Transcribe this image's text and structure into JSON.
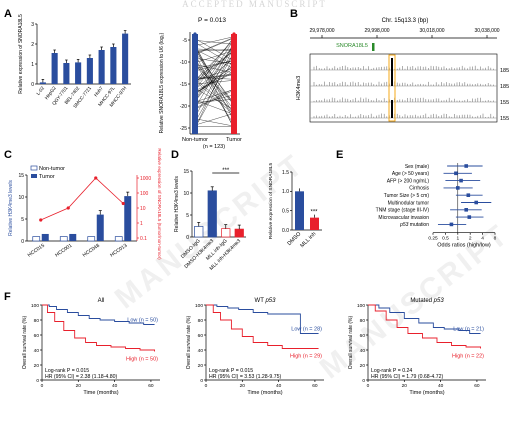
{
  "header_text": "ACCEPTED MANUSCRIPT",
  "watermark": "MANUSCRIPT",
  "colors": {
    "blue": "#2a4d9e",
    "red": "#e8202c",
    "pink": "#f6b0ba",
    "gray": "#9a9a9a"
  },
  "panels": {
    "A": "A",
    "B": "B",
    "C": "C",
    "D": "D",
    "E": "E",
    "F": "F"
  },
  "panelA": {
    "ylabel": "Relative expression of SNORA18L5",
    "categories": [
      "L-02",
      "HepG2",
      "QGY-7701",
      "BEL-7402",
      "SMCC-7721",
      "Huh7",
      "MHCC-97L",
      "MHCC-97H"
    ],
    "values": [
      0.08,
      1.55,
      1.05,
      1.08,
      1.3,
      1.7,
      1.85,
      2.52
    ],
    "ylim": [
      0,
      3
    ],
    "yticks": [
      "0",
      "1",
      "2",
      "3"
    ]
  },
  "panelA2": {
    "pvalue": "P = 0.013",
    "ylabel": "Relative SNORA18L5 expression to U6 (log₂)",
    "groups": [
      "Non-tumor",
      "Tumor"
    ],
    "n": "(n = 123)",
    "yticks": [
      "-5",
      "-10",
      "-15",
      "-20",
      "-25"
    ]
  },
  "panelB": {
    "title": "Chr. 15q13.3 (bp)",
    "axis": [
      "29,978,000",
      "29,998,000",
      "30,018,000",
      "30,038,000"
    ],
    "gene": "SNORA18L5",
    "ylabel": "H3K4me3",
    "tracks": [
      "185-N",
      "185-T",
      "155-N",
      "155-T"
    ]
  },
  "panelC": {
    "ylabel": "Relative H3K4me3 levels",
    "ylabel2": "Relative expression of SNORA18L5 (tumor/non-tumor)",
    "legend": [
      "Non-tumor",
      "Tumor"
    ],
    "categories": [
      "HCC015",
      "HCC001",
      "HCC048",
      "HCC013"
    ],
    "nontumor": [
      1.0,
      1.0,
      1.0,
      1.0
    ],
    "tumor": [
      1.6,
      1.6,
      6.0,
      10.2
    ],
    "ratio_log": [
      0.2,
      1.0,
      3.0,
      1.3
    ],
    "ylim": [
      0,
      15
    ],
    "yticks": [
      "0",
      "5",
      "10",
      "15"
    ],
    "yticks2": [
      "1000",
      "100",
      "10",
      "1",
      "0.1"
    ]
  },
  "panelD": {
    "ylabel": "Relative H3K4me3 levels",
    "categories": [
      "DMSO-IgG",
      "DMSO-H3K4me3",
      "MLL inh-IgG",
      "MLL inh-H3K4me3"
    ],
    "values": [
      2.4,
      10.5,
      1.9,
      1.8
    ],
    "ylim": [
      0,
      15
    ],
    "yticks": [
      "0",
      "5",
      "10",
      "15"
    ],
    "sig": "***",
    "ylabel2": "Relative expression of SNORA18L5",
    "categories2": [
      "DMSO",
      "MLL inh"
    ],
    "values2": [
      1.0,
      0.32
    ],
    "ylim2": [
      0,
      1.5
    ],
    "yticks2": [
      "0.0",
      "0.5",
      "1.0",
      "1.5"
    ],
    "sig2": "***"
  },
  "panelE": {
    "rows": [
      "Sex (male)",
      "Age (> 50 years)",
      "AFP (> 200 ng/mL)",
      "Cirrhosis",
      "Tumor Size (> 5 cm)",
      "Multinodular tumor",
      "TNM stage (stage III-IV)",
      "Microvascular invasion",
      "p53 mutation"
    ],
    "or": [
      1.6,
      0.9,
      1.2,
      1.0,
      1.8,
      2.8,
      1.6,
      1.9,
      0.7
    ],
    "lo": [
      0.55,
      0.45,
      0.5,
      0.45,
      0.9,
      1.2,
      0.65,
      0.9,
      0.33
    ],
    "hi": [
      4.0,
      2.2,
      3.5,
      2.3,
      4.0,
      6.5,
      3.8,
      4.2,
      1.6
    ],
    "xticks": [
      "0.25",
      "0.5",
      "1",
      "2",
      "4",
      "8"
    ],
    "xlabel": "Odds ratios (high/low)"
  },
  "panelF": [
    {
      "title": "All",
      "title_italic": "",
      "low": "Low (n = 50)",
      "high": "High (n = 50)",
      "logrank": "Log-rank P = 0.015",
      "hr": "HR (95% CI) = 2.38 (1.18-4.80)"
    },
    {
      "title": "WT ",
      "title_italic": "p53",
      "low": "Low (n = 28)",
      "high": "High (n = 29)",
      "logrank": "Log-rank P = 0.015",
      "hr": "HR (95% CI) = 3.53 (1.28-9.75)"
    },
    {
      "title": "Mutated ",
      "title_italic": "p53",
      "low": "Low (n = 21)",
      "high": "High (n = 22)",
      "logrank": "Log-rank P = 0.24",
      "hr": "HR (95% CI) = 1.79 (0.68-4.72)"
    }
  ],
  "panelF_axes": {
    "ylabel": "Overall survival rate (%)",
    "xlabel": "Time (months)",
    "yticks": [
      "0",
      "20",
      "40",
      "60",
      "80",
      "100"
    ],
    "xticks": [
      "0",
      "20",
      "40",
      "60"
    ]
  },
  "chart_data": [
    {
      "type": "bar",
      "panel": "A",
      "categories": [
        "L-02",
        "HepG2",
        "QGY-7701",
        "BEL-7402",
        "SMCC-7721",
        "Huh7",
        "MHCC-97L",
        "MHCC-97H"
      ],
      "values": [
        0.08,
        1.55,
        1.05,
        1.08,
        1.3,
        1.7,
        1.85,
        2.52
      ],
      "ylabel": "Relative expression of SNORA18L5",
      "ylim": [
        0,
        3
      ]
    },
    {
      "type": "bar",
      "panel": "C",
      "categories": [
        "HCC015",
        "HCC001",
        "HCC048",
        "HCC013"
      ],
      "series": [
        {
          "name": "Non-tumor",
          "values": [
            1,
            1,
            1,
            1
          ]
        },
        {
          "name": "Tumor",
          "values": [
            1.6,
            1.6,
            6.0,
            10.2
          ]
        }
      ],
      "ylim": [
        0,
        15
      ]
    },
    {
      "type": "bar",
      "panel": "D",
      "categories": [
        "DMSO-IgG",
        "DMSO-H3K4me3",
        "MLL inh-IgG",
        "MLL inh-H3K4me3"
      ],
      "values": [
        2.4,
        10.5,
        1.9,
        1.8
      ],
      "ylim": [
        0,
        15
      ]
    },
    {
      "type": "bar",
      "panel": "D2",
      "categories": [
        "DMSO",
        "MLL inh"
      ],
      "values": [
        1.0,
        0.32
      ],
      "ylim": [
        0,
        1.5
      ]
    },
    {
      "type": "scatter",
      "panel": "E",
      "categories": [
        "Sex (male)",
        "Age (> 50 years)",
        "AFP (> 200 ng/mL)",
        "Cirrhosis",
        "Tumor Size (> 5 cm)",
        "Multinodular tumor",
        "TNM stage (stage III-IV)",
        "Microvascular invasion",
        "p53 mutation"
      ],
      "values": [
        1.6,
        0.9,
        1.2,
        1.0,
        1.8,
        2.8,
        1.6,
        1.9,
        0.7
      ],
      "xlabel": "Odds ratios (high/low)"
    },
    {
      "type": "line",
      "panel": "F",
      "series": [
        {
          "name": "Low (n = 50)"
        },
        {
          "name": "High (n = 50)"
        },
        {
          "name": "Low (n = 28)"
        },
        {
          "name": "High (n = 29)"
        },
        {
          "name": "Low (n = 21)"
        },
        {
          "name": "High (n = 22)"
        }
      ],
      "xlabel": "Time (months)",
      "ylabel": "Overall survival rate (%)",
      "ylim": [
        0,
        100
      ]
    }
  ]
}
